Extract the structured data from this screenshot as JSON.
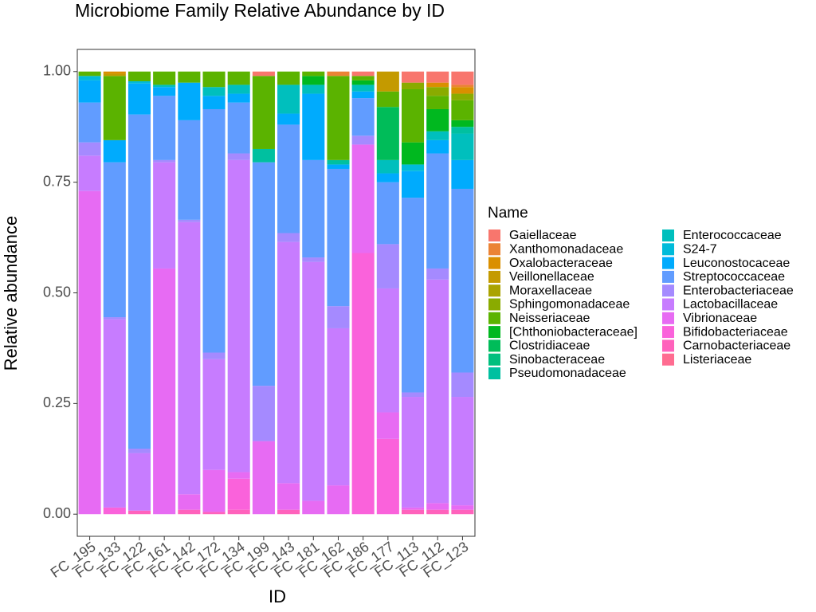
{
  "chart_data": {
    "type": "stacked_bar",
    "title": "Microbiome Family Relative Abundance by ID",
    "x_label": "ID",
    "y_label": "Relative abundance",
    "legend_title": "Name",
    "categories": [
      "FC_195",
      "FC_133",
      "FC_122",
      "FC_161",
      "FC_142",
      "FC_172",
      "FC_134",
      "FC_199",
      "FC_143",
      "FC_181",
      "FC_162",
      "FC_186",
      "FC_177",
      "FC_113",
      "FC_112",
      "FC_123"
    ],
    "ylim": [
      -0.05,
      1.05
    ],
    "yticks": [
      {
        "value": 0,
        "label": "0.00"
      },
      0.25,
      {
        "value": 0.5,
        "label": "0.50"
      },
      0.75,
      {
        "value": 1,
        "label": "1.00"
      }
    ],
    "series": [
      {
        "name": "Gaiellaceae",
        "color": "#F8766D",
        "values": [
          0,
          0,
          0,
          0,
          0,
          0,
          0,
          0.01,
          0,
          0,
          0,
          0.01,
          0,
          0.025,
          0.025,
          0.03
        ]
      },
      {
        "name": "Xanthomonadaceae",
        "color": "#EB8335",
        "values": [
          0,
          0,
          0,
          0,
          0,
          0,
          0,
          0,
          0,
          0,
          0.01,
          0,
          0,
          0,
          0,
          0.005
        ]
      },
      {
        "name": "Oxalobacteraceae",
        "color": "#DA8F00",
        "values": [
          0,
          0.005,
          0,
          0,
          0,
          0,
          0,
          0,
          0,
          0,
          0,
          0,
          0,
          0,
          0.01,
          0.015
        ]
      },
      {
        "name": "Veillonellaceae",
        "color": "#C49A00",
        "values": [
          0,
          0.005,
          0,
          0,
          0,
          0,
          0,
          0,
          0,
          0,
          0,
          0,
          0.045,
          0,
          0,
          0
        ]
      },
      {
        "name": "Moraxellaceae",
        "color": "#AAA300",
        "values": [
          0,
          0,
          0,
          0,
          0,
          0,
          0,
          0,
          0,
          0,
          0,
          0,
          0,
          0,
          0,
          0
        ]
      },
      {
        "name": "Sphingomonadaceae",
        "color": "#8AAB00",
        "values": [
          0,
          0,
          0,
          0,
          0,
          0,
          0,
          0,
          0,
          0,
          0,
          0,
          0,
          0.015,
          0.02,
          0.015
        ]
      },
      {
        "name": "Neisseriaceae",
        "color": "#5BB300",
        "values": [
          0.01,
          0.145,
          0.022,
          0.03,
          0.025,
          0.035,
          0.03,
          0.165,
          0.03,
          0.01,
          0.19,
          0.01,
          0.035,
          0.12,
          0.03,
          0.045
        ]
      },
      {
        "name": "[Chthoniobacteraceae]",
        "color": "#00B81F",
        "values": [
          0,
          0,
          0,
          0,
          0,
          0,
          0,
          0,
          0,
          0.02,
          0,
          0.01,
          0,
          0.05,
          0.05,
          0.015
        ]
      },
      {
        "name": "Clostridiaceae",
        "color": "#00BC59",
        "values": [
          0,
          0,
          0,
          0,
          0,
          0,
          0,
          0,
          0,
          0,
          0,
          0,
          0.12,
          0,
          0,
          0
        ]
      },
      {
        "name": "Sinobacteraceae",
        "color": "#00BF7E",
        "values": [
          0,
          0,
          0,
          0,
          0,
          0,
          0,
          0,
          0,
          0,
          0,
          0,
          0,
          0,
          0,
          0
        ]
      },
      {
        "name": "Pseudomonadaceae",
        "color": "#00C0A0",
        "values": [
          0,
          0,
          0,
          0,
          0,
          0,
          0,
          0.03,
          0,
          0,
          0.01,
          0,
          0,
          0,
          0,
          0.015
        ]
      },
      {
        "name": "Enterococcaceae",
        "color": "#00BFBD",
        "values": [
          0,
          0,
          0,
          0.005,
          0,
          0.02,
          0.02,
          0,
          0.065,
          0.02,
          0,
          0.015,
          0.03,
          0,
          0.02,
          0.06
        ]
      },
      {
        "name": "S24-7",
        "color": "#00BBDA",
        "values": [
          0.01,
          0,
          0.005,
          0,
          0,
          0,
          0,
          0,
          0,
          0,
          0,
          0,
          0,
          0.015,
          0,
          0
        ]
      },
      {
        "name": "Leuconostocaceae",
        "color": "#00ABFD",
        "values": [
          0.05,
          0.05,
          0.07,
          0.02,
          0.085,
          0.03,
          0.02,
          0,
          0.025,
          0.15,
          0.01,
          0.015,
          0.02,
          0.06,
          0.03,
          0.065
        ]
      },
      {
        "name": "Streptococcaceae",
        "color": "#619CFF",
        "values": [
          0.09,
          0.35,
          0.755,
          0.145,
          0.225,
          0.55,
          0.115,
          0.505,
          0.245,
          0.22,
          0.31,
          0.085,
          0.14,
          0.44,
          0.26,
          0.415
        ]
      },
      {
        "name": "Enterobacteriaceae",
        "color": "#A58AFF",
        "values": [
          0.03,
          0.005,
          0.01,
          0.005,
          0.005,
          0.015,
          0.015,
          0.125,
          0.02,
          0.01,
          0.05,
          0.02,
          0.1,
          0.01,
          0.025,
          0.055
        ]
      },
      {
        "name": "Lactobacillaceae",
        "color": "#C77CFF",
        "values": [
          0.08,
          0.425,
          0.13,
          0.24,
          0.615,
          0.25,
          0.705,
          0,
          0.545,
          0.54,
          0.355,
          0,
          0.28,
          0.25,
          0.505,
          0.245
        ]
      },
      {
        "name": "Vibrionaceae",
        "color": "#E76BF3",
        "values": [
          0.73,
          0,
          0,
          0.555,
          0.035,
          0.095,
          0.015,
          0.165,
          0.06,
          0.03,
          0.065,
          0.245,
          0.06,
          0.005,
          0.015,
          0.01
        ]
      },
      {
        "name": "Bifidobacteriaceae",
        "color": "#FA62DB",
        "values": [
          0,
          0.015,
          0,
          0,
          0,
          0,
          0.07,
          0,
          0,
          0,
          0,
          0.59,
          0.17,
          0,
          0,
          0
        ]
      },
      {
        "name": "Carnobacteriaceae",
        "color": "#FF62BC",
        "values": [
          0,
          0,
          0.008,
          0,
          0.01,
          0.005,
          0.01,
          0,
          0.01,
          0,
          0,
          0,
          0,
          0.01,
          0.01,
          0.01
        ]
      },
      {
        "name": "Listeriaceae",
        "color": "#FF6C91",
        "values": [
          0,
          0,
          0,
          0,
          0,
          0,
          0,
          0,
          0,
          0,
          0,
          0,
          0,
          0,
          0,
          0
        ]
      }
    ]
  }
}
